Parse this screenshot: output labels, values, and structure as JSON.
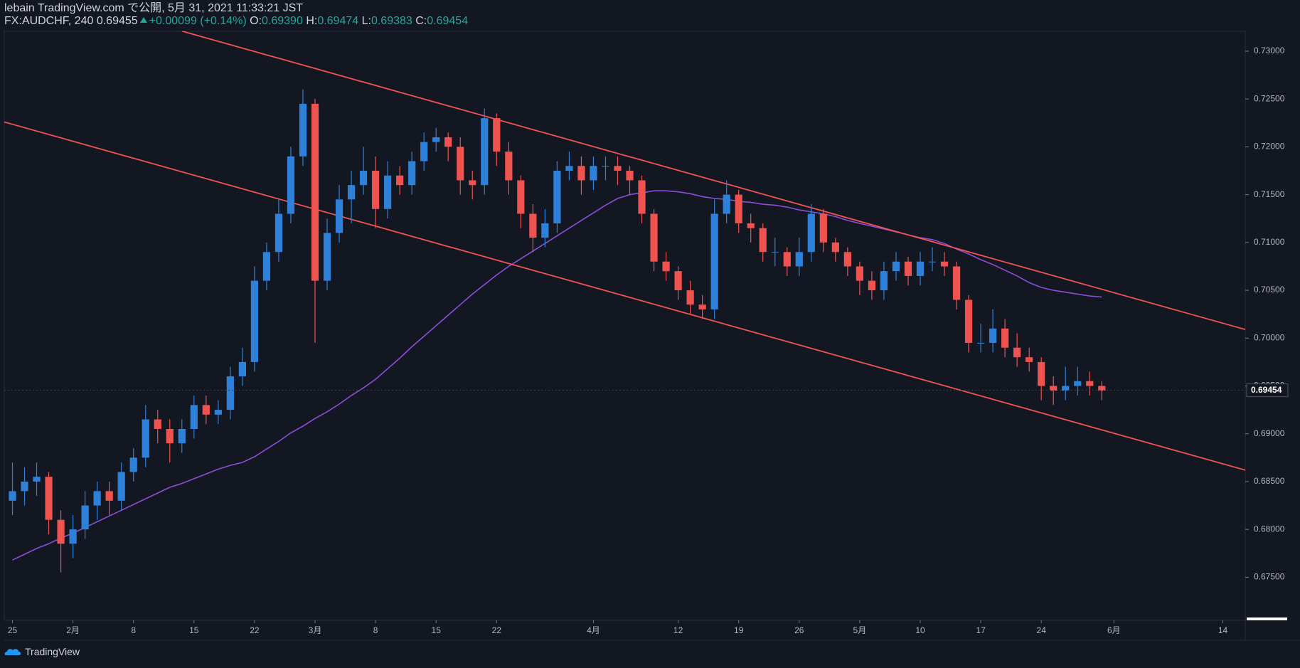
{
  "chart_data": {
    "type": "candlestick",
    "publisher": "lebain TradingView.com で公開, 5月 31, 2021 11:33:21 JST",
    "symbol": "FX:AUDCHF, 240",
    "last": 0.69455,
    "change": "+0.00099 (+0.14%)",
    "ohlc_labels": [
      "O:",
      "H:",
      "L:",
      "C:"
    ],
    "ohlc_values": [
      "0.69390",
      "0.69474",
      "0.69383",
      "0.69454"
    ],
    "footer": "TradingView",
    "categories": [
      "25",
      null,
      null,
      null,
      null,
      "2月",
      null,
      null,
      null,
      null,
      "8",
      null,
      null,
      null,
      null,
      "15",
      null,
      null,
      null,
      null,
      "22",
      null,
      null,
      null,
      null,
      "3月",
      null,
      null,
      null,
      null,
      "8",
      null,
      null,
      null,
      null,
      "15",
      null,
      null,
      null,
      null,
      "22",
      null,
      null,
      null,
      null,
      null,
      null,
      null,
      "4月",
      null,
      null,
      null,
      null,
      null,
      null,
      "12",
      null,
      null,
      null,
      null,
      "19",
      null,
      null,
      null,
      null,
      "26",
      null,
      null,
      null,
      null,
      "5月",
      null,
      null,
      null,
      null,
      "10",
      null,
      null,
      null,
      null,
      "17",
      null,
      null,
      null,
      null,
      "24",
      null,
      null,
      null,
      null,
      null,
      "6月",
      null,
      null,
      null,
      null,
      null,
      null,
      null,
      null,
      "14",
      null,
      null
    ],
    "open": [
      0.683,
      0.684,
      0.685,
      0.6855,
      0.681,
      0.6785,
      0.68,
      0.6825,
      0.684,
      0.683,
      0.686,
      0.6875,
      0.6915,
      0.6905,
      0.689,
      0.6905,
      0.693,
      0.692,
      0.6925,
      0.696,
      0.6975,
      0.706,
      0.709,
      0.713,
      0.719,
      0.7245,
      0.706,
      0.711,
      0.7145,
      0.716,
      0.7175,
      0.7135,
      0.717,
      0.716,
      0.7185,
      0.7205,
      0.721,
      0.72,
      0.7165,
      0.716,
      0.723,
      0.7195,
      0.7165,
      0.713,
      0.7105,
      0.712,
      0.7175,
      0.718,
      0.7165,
      0.718,
      0.718,
      0.7175,
      0.7165,
      0.713,
      0.708,
      0.707,
      0.705,
      0.7035,
      0.703,
      0.713,
      0.715,
      0.712,
      0.7115,
      0.709,
      0.709,
      0.7075,
      0.709,
      0.713,
      0.71,
      0.709,
      0.7075,
      0.706,
      0.705,
      0.707,
      0.708,
      0.7065,
      0.708,
      0.708,
      0.7075,
      0.704,
      0.6995,
      0.6995,
      0.701,
      0.699,
      0.698,
      0.6975,
      0.695,
      0.6945,
      0.695,
      0.6955,
      0.695,
      null,
      null,
      null,
      null,
      null,
      null,
      null,
      null,
      null,
      null,
      null,
      null
    ],
    "high": [
      0.687,
      0.6865,
      0.687,
      0.686,
      0.682,
      0.6815,
      0.684,
      0.685,
      0.685,
      0.687,
      0.6885,
      0.693,
      0.6925,
      0.6915,
      0.6915,
      0.694,
      0.694,
      0.6935,
      0.697,
      0.699,
      0.7075,
      0.71,
      0.7145,
      0.72,
      0.726,
      0.725,
      0.7125,
      0.716,
      0.7175,
      0.72,
      0.719,
      0.7185,
      0.718,
      0.7195,
      0.7215,
      0.722,
      0.7215,
      0.721,
      0.7175,
      0.724,
      0.7235,
      0.7205,
      0.717,
      0.714,
      0.7135,
      0.7185,
      0.7195,
      0.719,
      0.719,
      0.719,
      0.719,
      0.718,
      0.717,
      0.7135,
      0.709,
      0.7075,
      0.706,
      0.7045,
      0.7145,
      0.7165,
      0.7155,
      0.713,
      0.712,
      0.7105,
      0.7095,
      0.7105,
      0.714,
      0.7135,
      0.7105,
      0.7095,
      0.708,
      0.707,
      0.708,
      0.709,
      0.7085,
      0.709,
      0.7095,
      0.709,
      0.708,
      0.7045,
      0.7015,
      0.703,
      0.702,
      0.7005,
      0.699,
      0.698,
      0.696,
      0.697,
      0.697,
      0.6965,
      0.6955,
      null,
      null,
      null,
      null,
      null,
      null,
      null,
      null,
      null,
      null,
      null,
      null
    ],
    "low": [
      0.6815,
      0.6825,
      0.6835,
      0.6795,
      0.6755,
      0.677,
      0.679,
      0.681,
      0.6815,
      0.682,
      0.685,
      0.6865,
      0.689,
      0.687,
      0.688,
      0.6895,
      0.691,
      0.691,
      0.6915,
      0.695,
      0.6965,
      0.705,
      0.708,
      0.712,
      0.718,
      0.6995,
      0.705,
      0.71,
      0.712,
      0.715,
      0.7115,
      0.7125,
      0.715,
      0.715,
      0.7175,
      0.7195,
      0.7185,
      0.715,
      0.7145,
      0.715,
      0.718,
      0.715,
      0.7115,
      0.709,
      0.7095,
      0.711,
      0.7165,
      0.715,
      0.7155,
      0.7165,
      0.716,
      0.715,
      0.712,
      0.707,
      0.706,
      0.704,
      0.7025,
      0.702,
      0.702,
      0.712,
      0.711,
      0.71,
      0.708,
      0.7075,
      0.7065,
      0.7065,
      0.708,
      0.709,
      0.708,
      0.7065,
      0.7045,
      0.704,
      0.704,
      0.706,
      0.7055,
      0.7055,
      0.707,
      0.7065,
      0.703,
      0.6985,
      0.6985,
      0.6985,
      0.698,
      0.697,
      0.6965,
      0.6935,
      0.693,
      0.6935,
      0.694,
      0.694,
      0.6935,
      null,
      null,
      null,
      null,
      null,
      null,
      null,
      null,
      null,
      null,
      null,
      null
    ],
    "close": [
      0.684,
      0.685,
      0.6855,
      0.681,
      0.6785,
      0.68,
      0.6825,
      0.684,
      0.683,
      0.686,
      0.6875,
      0.6915,
      0.6905,
      0.689,
      0.6905,
      0.693,
      0.692,
      0.6925,
      0.696,
      0.6975,
      0.706,
      0.709,
      0.713,
      0.719,
      0.7245,
      0.706,
      0.711,
      0.7145,
      0.716,
      0.7175,
      0.7135,
      0.717,
      0.716,
      0.7185,
      0.7205,
      0.721,
      0.72,
      0.7165,
      0.716,
      0.723,
      0.7195,
      0.7165,
      0.713,
      0.7105,
      0.712,
      0.7175,
      0.718,
      0.7165,
      0.718,
      0.718,
      0.7175,
      0.7165,
      0.713,
      0.708,
      0.707,
      0.705,
      0.7035,
      0.703,
      0.713,
      0.715,
      0.712,
      0.7115,
      0.709,
      0.709,
      0.7075,
      0.709,
      0.713,
      0.71,
      0.709,
      0.7075,
      0.706,
      0.705,
      0.707,
      0.708,
      0.7065,
      0.708,
      0.708,
      0.7075,
      0.704,
      0.6995,
      0.6995,
      0.701,
      0.699,
      0.698,
      0.6975,
      0.695,
      0.6945,
      0.695,
      0.6955,
      0.695,
      0.6945,
      null,
      null,
      null,
      null,
      null,
      null,
      null,
      null,
      null,
      null,
      null,
      null
    ],
    "up_color": "#2f80d9",
    "down_color": "#ef5350",
    "moving_average": {
      "color": "#8a4fd8",
      "values": [
        0.6768,
        0.6774,
        0.678,
        0.6785,
        0.6791,
        0.6796,
        0.6802,
        0.6808,
        0.6814,
        0.682,
        0.6826,
        0.6832,
        0.6838,
        0.6844,
        0.6848,
        0.6853,
        0.6858,
        0.6863,
        0.6867,
        0.687,
        0.6876,
        0.6884,
        0.6892,
        0.6901,
        0.6908,
        0.6916,
        0.6923,
        0.6931,
        0.694,
        0.6948,
        0.6957,
        0.6968,
        0.6979,
        0.6991,
        0.7002,
        0.7013,
        0.7024,
        0.7035,
        0.7046,
        0.7056,
        0.7066,
        0.7075,
        0.7083,
        0.7091,
        0.7099,
        0.7107,
        0.7115,
        0.7123,
        0.7131,
        0.7139,
        0.7146,
        0.715,
        0.7152,
        0.7154,
        0.7154,
        0.7153,
        0.7151,
        0.7148,
        0.7146,
        0.7145,
        0.7143,
        0.7142,
        0.714,
        0.7139,
        0.7137,
        0.7134,
        0.7132,
        0.713,
        0.7127,
        0.7123,
        0.712,
        0.7117,
        0.7114,
        0.7111,
        0.7108,
        0.7105,
        0.7103,
        0.7099,
        0.7093,
        0.7088,
        0.7082,
        0.7077,
        0.7071,
        0.7065,
        0.7058,
        0.7053,
        0.705,
        0.7048,
        0.7046,
        0.7044,
        0.7043,
        null,
        null,
        null,
        null,
        null,
        null,
        null,
        null,
        null,
        null,
        null,
        null
      ]
    },
    "trendlines": [
      {
        "color": "#f05454",
        "points": [
          [
            14,
            0.7321
          ],
          [
            101.85,
            0.7009
          ]
        ]
      },
      {
        "color": "#f05454",
        "points": [
          [
            -0.68,
            0.7226
          ],
          [
            101.85,
            0.6862
          ]
        ]
      }
    ],
    "last_price": 0.69454,
    "ylim": [
      0.67049,
      0.73208
    ],
    "yticks": [
      {
        "value": 0.675,
        "label": "0.67500"
      },
      {
        "value": 0.68,
        "label": "0.68000"
      },
      {
        "value": 0.685,
        "label": "0.68500"
      },
      {
        "value": 0.69,
        "label": "0.69000"
      },
      {
        "value": 0.695,
        "label": "0.69500"
      },
      {
        "value": 0.7,
        "label": "0.70000"
      },
      {
        "value": 0.705,
        "label": "0.70500"
      },
      {
        "value": 0.71,
        "label": "0.71000"
      },
      {
        "value": 0.715,
        "label": "0.71500"
      },
      {
        "value": 0.72,
        "label": "0.72000"
      },
      {
        "value": 0.725,
        "label": "0.72500"
      },
      {
        "value": 0.73,
        "label": "0.73000"
      }
    ],
    "grid": false
  }
}
